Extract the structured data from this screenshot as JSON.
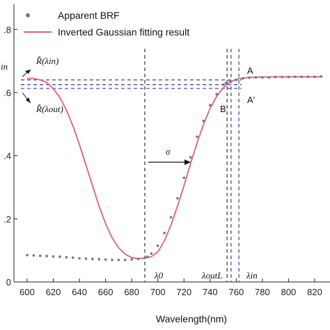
{
  "chart_data": {
    "type": "line",
    "xlabel": "Wavelength(nm)",
    "ylabel": "",
    "xlim": [
      595,
      825
    ],
    "ylim": [
      0,
      0.88
    ],
    "x_ticks": [
      600,
      620,
      640,
      660,
      680,
      700,
      720,
      740,
      760,
      780,
      800,
      820
    ],
    "y_ticks": [
      {
        "value": 0.0,
        "label": "0"
      },
      {
        "value": 0.2,
        "label": ".2"
      },
      {
        "value": 0.4,
        "label": ".4"
      },
      {
        "value": 0.6,
        "label": ".6"
      },
      {
        "value": 0.8,
        "label": ".8"
      }
    ],
    "legend_position": "top-left",
    "series": [
      {
        "name": "Apparent BRF",
        "style": "dots",
        "color": "#777777",
        "x": [
          600,
          605,
          610,
          615,
          620,
          625,
          630,
          635,
          640,
          645,
          650,
          655,
          660,
          665,
          670,
          675,
          680,
          685,
          690,
          692,
          695,
          700,
          705,
          710,
          715,
          720,
          725,
          730,
          735,
          740,
          745,
          750,
          752,
          755,
          760,
          765,
          770,
          775,
          780,
          785,
          790,
          795,
          800,
          805,
          810,
          815,
          820,
          825
        ],
        "y": [
          0.085,
          0.084,
          0.083,
          0.082,
          0.081,
          0.08,
          0.078,
          0.077,
          0.075,
          0.074,
          0.073,
          0.072,
          0.071,
          0.07,
          0.07,
          0.07,
          0.071,
          0.073,
          0.077,
          0.08,
          0.09,
          0.115,
          0.155,
          0.205,
          0.265,
          0.33,
          0.395,
          0.46,
          0.51,
          0.56,
          0.595,
          0.625,
          0.63,
          0.638,
          0.64,
          0.645,
          0.647,
          0.648,
          0.648,
          0.648,
          0.649,
          0.649,
          0.649,
          0.65,
          0.65,
          0.65,
          0.65,
          0.651
        ]
      },
      {
        "name": "Inverted Gaussian fitting result",
        "style": "line",
        "color": "#e0607a",
        "x": [
          600,
          605,
          610,
          615,
          620,
          625,
          630,
          635,
          640,
          645,
          650,
          655,
          660,
          665,
          670,
          675,
          680,
          685,
          690,
          695,
          700,
          705,
          710,
          715,
          720,
          725,
          730,
          735,
          740,
          745,
          750,
          755,
          760,
          765,
          770,
          780,
          790,
          800,
          810,
          820,
          825
        ],
        "y": [
          0.645,
          0.645,
          0.64,
          0.632,
          0.612,
          0.585,
          0.545,
          0.495,
          0.435,
          0.37,
          0.305,
          0.24,
          0.185,
          0.14,
          0.108,
          0.088,
          0.077,
          0.074,
          0.075,
          0.08,
          0.095,
          0.13,
          0.18,
          0.24,
          0.305,
          0.375,
          0.44,
          0.5,
          0.55,
          0.588,
          0.615,
          0.633,
          0.642,
          0.646,
          0.648,
          0.649,
          0.65,
          0.65,
          0.65,
          0.65,
          0.65
        ]
      }
    ],
    "reference_lines": [
      {
        "orientation": "vertical",
        "x": 690,
        "color": "#333333"
      },
      {
        "orientation": "vertical",
        "x": 753,
        "color": "#333333"
      },
      {
        "orientation": "vertical",
        "x": 756,
        "color": "#3a3aa0"
      },
      {
        "orientation": "vertical",
        "x": 762,
        "color": "#3a3aa0"
      },
      {
        "orientation": "horizontal",
        "y": 0.64,
        "color": "#333333"
      },
      {
        "orientation": "horizontal",
        "y": 0.625,
        "color": "#3a3aa0"
      },
      {
        "orientation": "horizontal",
        "y": 0.613,
        "color": "#3a3aa0"
      }
    ],
    "annotations": [
      {
        "text": "σ",
        "x": 713,
        "y": 0.4
      },
      {
        "text": "A",
        "x": 765,
        "y": 0.655
      },
      {
        "text": "A'",
        "x": 765,
        "y": 0.575
      },
      {
        "text": "B",
        "x": 748,
        "y": 0.54
      },
      {
        "text": "R̂(λin)",
        "x": 605,
        "y": 0.69
      },
      {
        "text": "R̂(λout)",
        "x": 605,
        "y": 0.545
      },
      {
        "text": "λ0",
        "x": 692,
        "y": 0.035
      },
      {
        "text": "λoutL",
        "x": 738,
        "y": 0.035
      },
      {
        "text": "λin",
        "x": 763,
        "y": 0.035
      },
      {
        "text": "in",
        "x": 595,
        "y": 0.67
      }
    ]
  },
  "colors": {
    "dots": "#777777",
    "fit_line": "#e0607a",
    "ref_dark": "#333333",
    "ref_blue": "#3a3aa0",
    "annotation_red": "#c0172b"
  }
}
